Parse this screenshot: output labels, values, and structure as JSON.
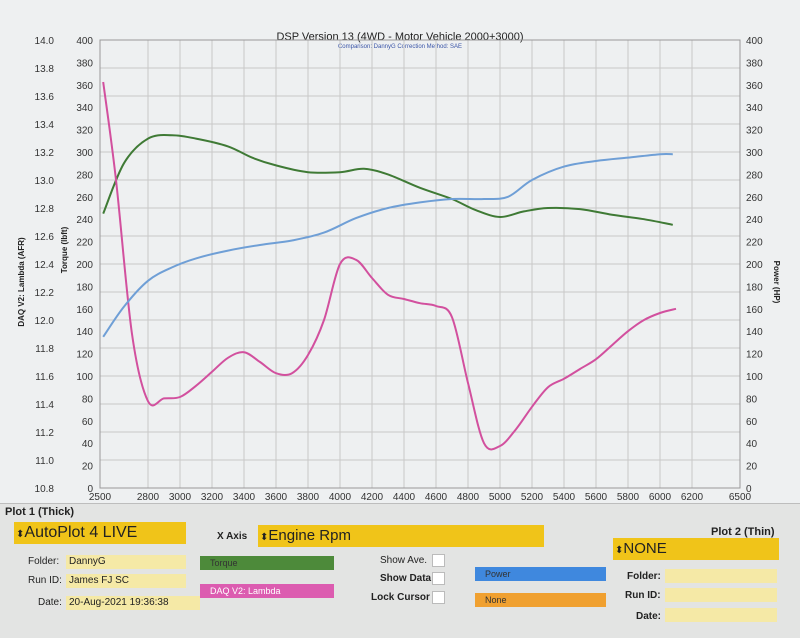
{
  "chart_data": {
    "type": "line",
    "title": "DSP Version 13 (4WD - Motor Vehicle 2000+3000)",
    "subtitle": "Comparison: DannyG     Correction Method: SAE",
    "x_ticks": [
      2500,
      2800,
      3000,
      3200,
      3400,
      3600,
      3800,
      4000,
      4200,
      4400,
      4600,
      4800,
      5000,
      5200,
      5400,
      5600,
      5800,
      6000,
      6200,
      6500
    ],
    "xlim": [
      2500,
      6500
    ],
    "y_afr": {
      "label": "DAQ V2: Lambda (AFR)",
      "ticks": [
        "14.0",
        "13.8",
        "13.6",
        "13.4",
        "13.2",
        "13.0",
        "12.8",
        "12.6",
        "12.4",
        "12.2",
        "12.0",
        "11.8",
        "11.6",
        "11.4",
        "11.2",
        "11.0",
        "10.8"
      ],
      "range": [
        10.8,
        14.0
      ]
    },
    "y_torque": {
      "label": "Torque (lbft)",
      "ticks": [
        "400",
        "380",
        "360",
        "340",
        "320",
        "300",
        "280",
        "260",
        "240",
        "220",
        "200",
        "180",
        "160",
        "140",
        "120",
        "100",
        "80",
        "60",
        "40",
        "20",
        "0"
      ],
      "range": [
        0,
        400
      ]
    },
    "y_power": {
      "label": "Power (HP)",
      "ticks": [
        "400",
        "380",
        "360",
        "340",
        "320",
        "300",
        "280",
        "260",
        "240",
        "220",
        "200",
        "180",
        "160",
        "140",
        "120",
        "100",
        "80",
        "60",
        "40",
        "20",
        "0"
      ],
      "range": [
        0,
        400
      ]
    },
    "grid": true,
    "series": [
      {
        "name": "Torque",
        "axis": "torque",
        "color": "#3f7a35",
        "x": [
          2520,
          2650,
          2800,
          2950,
          3100,
          3300,
          3450,
          3600,
          3800,
          4000,
          4150,
          4300,
          4500,
          4700,
          4850,
          5000,
          5150,
          5300,
          5500,
          5700,
          5900,
          6080
        ],
        "y": [
          245,
          290,
          312,
          315,
          312,
          305,
          295,
          288,
          282,
          282,
          285,
          280,
          268,
          258,
          248,
          242,
          247,
          250,
          249,
          244,
          240,
          235
        ]
      },
      {
        "name": "DAQ V2: Lambda",
        "axis": "afr",
        "color": "#d2509e",
        "x": [
          2520,
          2600,
          2700,
          2800,
          2900,
          3000,
          3100,
          3200,
          3300,
          3400,
          3500,
          3600,
          3700,
          3800,
          3900,
          4000,
          4100,
          4200,
          4300,
          4400,
          4500,
          4600,
          4700,
          4800,
          4900,
          5000,
          5100,
          5200,
          5300,
          5400,
          5500,
          5600,
          5700,
          5800,
          5900,
          6000,
          6100
        ],
        "y": [
          13.7,
          13.0,
          11.9,
          11.42,
          11.44,
          11.45,
          11.53,
          11.63,
          11.73,
          11.77,
          11.7,
          11.62,
          11.62,
          11.75,
          12.0,
          12.4,
          12.43,
          12.3,
          12.18,
          12.15,
          12.12,
          12.1,
          12.02,
          11.55,
          11.12,
          11.1,
          11.22,
          11.38,
          11.52,
          11.58,
          11.65,
          11.72,
          11.82,
          11.92,
          12.0,
          12.05,
          12.08
        ]
      },
      {
        "name": "Power",
        "axis": "power",
        "color": "#6f9fd6",
        "x": [
          2520,
          2650,
          2800,
          2950,
          3100,
          3300,
          3500,
          3700,
          3900,
          4100,
          4300,
          4500,
          4700,
          4900,
          5050,
          5200,
          5400,
          5600,
          5800,
          6000,
          6080
        ],
        "y": [
          135,
          162,
          185,
          197,
          205,
          212,
          217,
          221,
          228,
          241,
          250,
          255,
          258,
          258,
          260,
          275,
          287,
          292,
          295,
          298,
          298
        ]
      }
    ]
  },
  "panel": {
    "plot1_label": "Plot 1 (Thick)",
    "plot2_label": "Plot 2 (Thin)",
    "plot1_value": "AutoPlot 4 LIVE",
    "plot2_value": "NONE",
    "xaxis_label": "X Axis",
    "xaxis_value": "Engine Rpm",
    "folder_label": "Folder:",
    "folder_value": "DannyG",
    "runid_label": "Run ID:",
    "runid_value": "James FJ SC",
    "date_label": "Date:",
    "date_value": "20-Aug-2021 19:36:38",
    "folder2_label": "Folder:",
    "runid2_label": "Run ID:",
    "date2_label": "Date:",
    "sel_torque": "Torque",
    "sel_lambda": "DAQ V2: Lambda",
    "sel_power": "Power",
    "sel_none": "None",
    "show_ave": "Show Ave.",
    "show_data": "Show Data",
    "lock_cursor": "Lock Cursor",
    "spin_glyph": "⬍"
  }
}
